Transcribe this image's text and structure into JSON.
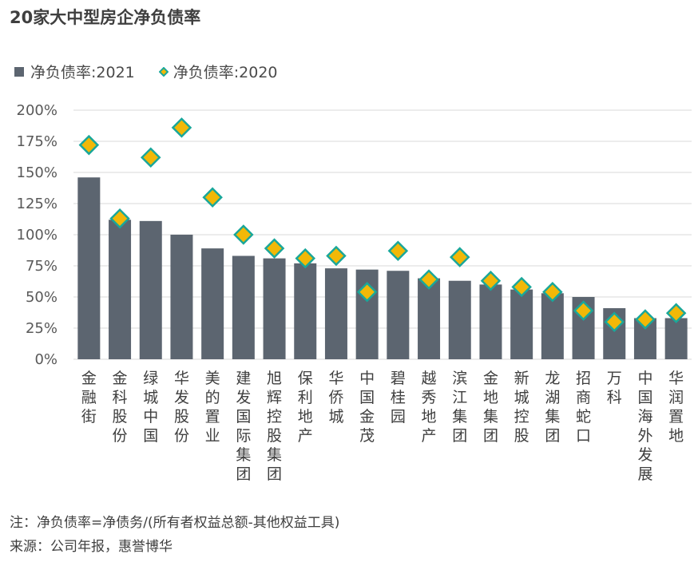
{
  "title": "20家大中型房企净负债率",
  "colors": {
    "bar": "#5c6570",
    "diamond_fill": "#f2b807",
    "diamond_stroke": "#1aa79a",
    "grid": "#d9d9d9"
  },
  "chart_data": {
    "type": "bar",
    "categories": [
      "金融街",
      "金科股份",
      "绿城中国",
      "华发股份",
      "美的置业",
      "建发国际集团",
      "旭辉控股集团",
      "保利地产",
      "华侨城",
      "中国金茂",
      "碧桂园",
      "越秀地产",
      "滨江集团",
      "金地集团",
      "新城控股",
      "龙湖集团",
      "招商蛇口",
      "万科",
      "中国海外发展",
      "华润置地"
    ],
    "series": [
      {
        "name": "净负债率:2021",
        "type": "bar",
        "values": [
          146,
          112,
          111,
          100,
          89,
          83,
          81,
          77,
          73,
          72,
          71,
          65,
          63,
          60,
          56,
          53,
          50,
          41,
          33,
          33
        ]
      },
      {
        "name": "净负债率:2020",
        "type": "marker",
        "values": [
          172,
          113,
          162,
          186,
          130,
          100,
          89,
          81,
          83,
          54,
          87,
          64,
          82,
          63,
          58,
          54,
          39,
          30,
          32,
          37
        ]
      }
    ],
    "yticks": [
      "0%",
      "25%",
      "50%",
      "75%",
      "100%",
      "125%",
      "150%",
      "175%",
      "200%"
    ],
    "ylim": [
      0,
      200
    ],
    "grid": true,
    "legend_position": "top-left"
  },
  "notes": {
    "line1": "注：净负债率=净债务/(所有者权益总额-其他权益工具)",
    "line2": "来源：公司年报，惠誉博华"
  }
}
